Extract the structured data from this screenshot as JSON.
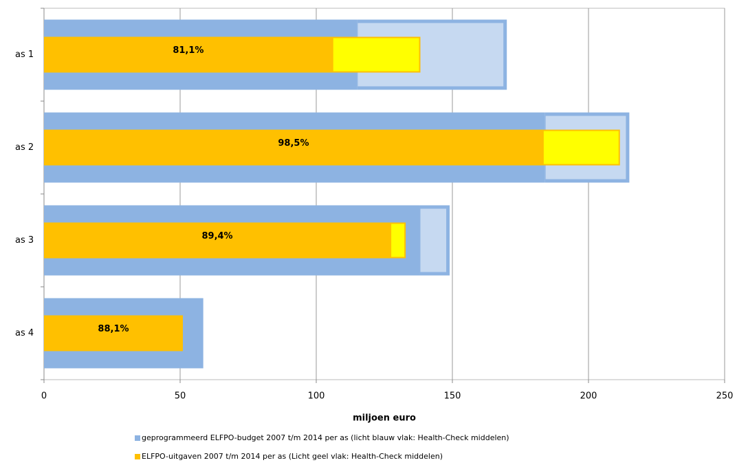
{
  "chart_data": {
    "type": "overlap-bar",
    "orientation": "horizontal",
    "x_label": "miljoen euro",
    "categories": [
      "as 1",
      "as 2",
      "as 3",
      "as 4"
    ],
    "xlim": [
      0,
      250
    ],
    "xticks": [
      0,
      50,
      100,
      150,
      200,
      250
    ],
    "grid": true,
    "series": [
      {
        "name": "geprogrammeerd ELFPO-budget 2007 t/m 2014 per as (licht blauw vlak: Health-Check middelen)",
        "color": "#8db3e2",
        "values": [
          115,
          184,
          138,
          58.5
        ],
        "extra_color": "#c6d9f1",
        "extra_values": [
          55,
          31,
          11,
          0
        ]
      },
      {
        "name": "ELFPO-uitgaven 2007 t/m 2014 per as (Licht geel vlak: Health-Check middelen)",
        "color": "#ffc000",
        "values": [
          106,
          183.3,
          127.3,
          51
        ],
        "extra_color": "#ffff00",
        "extra_values": [
          32,
          28,
          5.3,
          0
        ]
      }
    ],
    "annotations": [
      "81,1%",
      "98,5%",
      "89,4%",
      "88,1%"
    ]
  }
}
